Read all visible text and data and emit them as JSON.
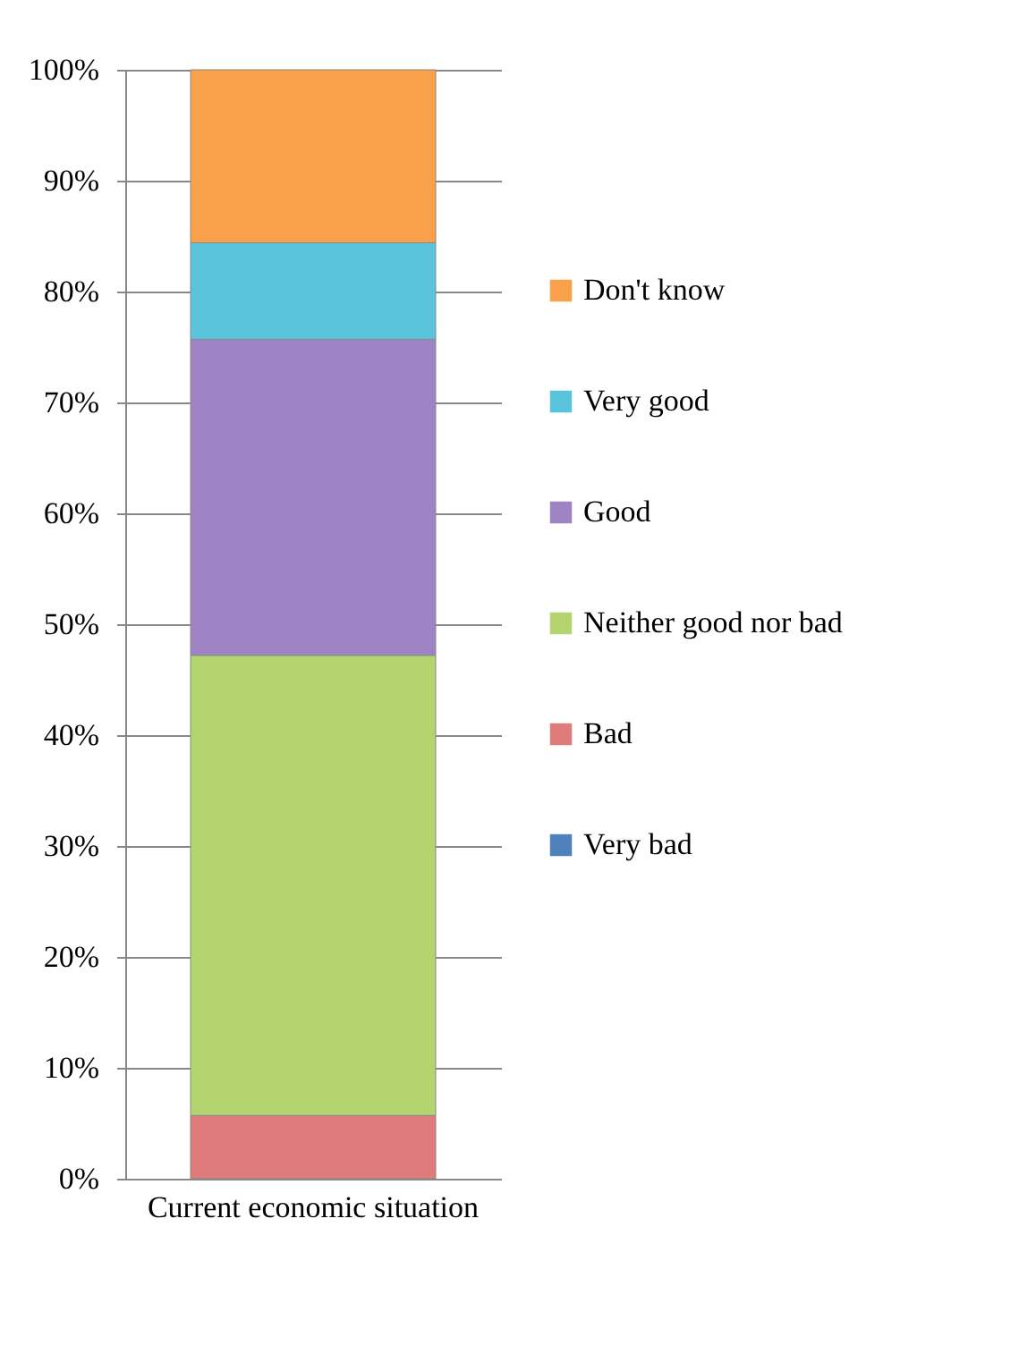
{
  "chart_data": {
    "type": "bar",
    "stacked": true,
    "categories": [
      "Current economic situation"
    ],
    "series": [
      {
        "name": "Very bad",
        "color": "#4f81bd",
        "values": [
          0
        ]
      },
      {
        "name": "Bad",
        "color": "#e07b7b",
        "values": [
          5.7
        ]
      },
      {
        "name": "Neither good nor bad",
        "color": "#b3d46f",
        "values": [
          41.5
        ]
      },
      {
        "name": "Good",
        "color": "#9e84c4",
        "values": [
          28.5
        ]
      },
      {
        "name": "Very good",
        "color": "#5bc4dd",
        "values": [
          8.7
        ]
      },
      {
        "name": "Don't know",
        "color": "#f8a14a",
        "values": [
          15.6
        ]
      }
    ],
    "ylim": [
      0,
      100
    ],
    "yticks": [
      {
        "value": 0,
        "label": "0%"
      },
      {
        "value": 10,
        "label": "10%"
      },
      {
        "value": 20,
        "label": "20%"
      },
      {
        "value": 30,
        "label": "30%"
      },
      {
        "value": 40,
        "label": "40%"
      },
      {
        "value": 50,
        "label": "50%"
      },
      {
        "value": 60,
        "label": "60%"
      },
      {
        "value": 70,
        "label": "70%"
      },
      {
        "value": 80,
        "label": "80%"
      },
      {
        "value": 90,
        "label": "90%"
      },
      {
        "value": 100,
        "label": "100%"
      }
    ],
    "grid": "y",
    "legend": "right"
  }
}
